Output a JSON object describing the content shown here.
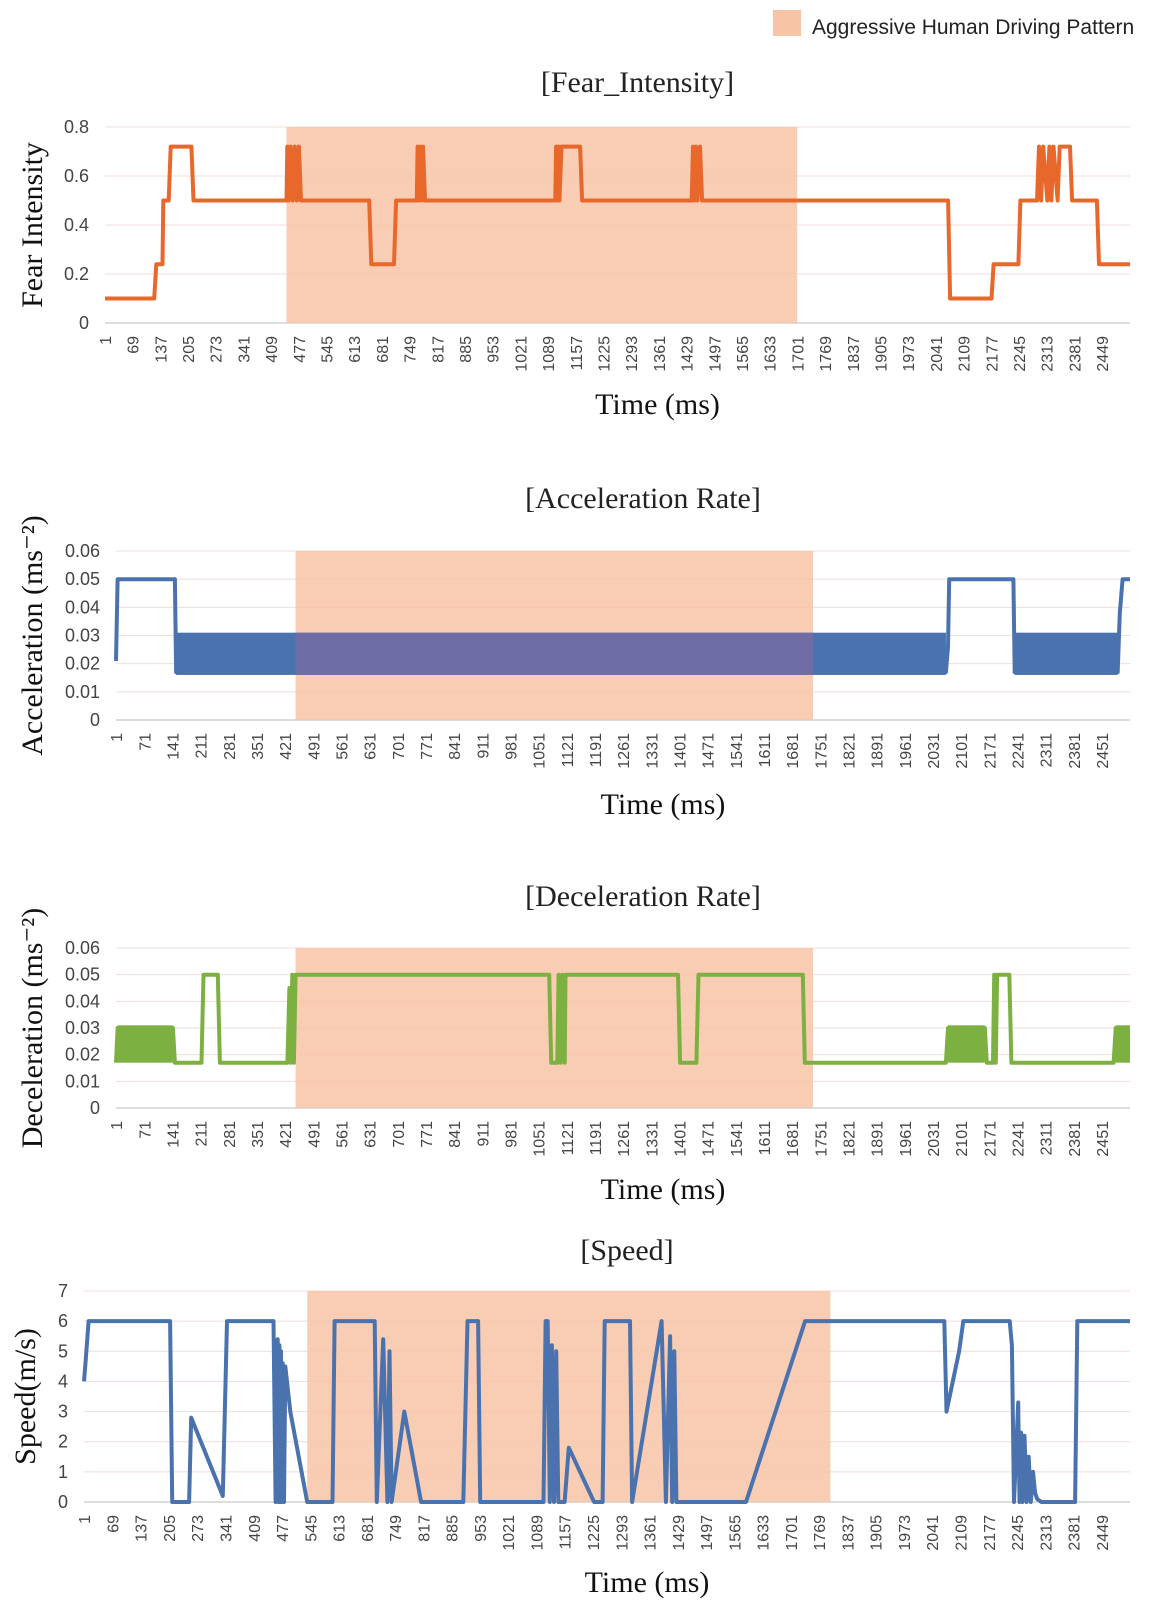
{
  "legend": {
    "label": "Aggressive Human Driving Pattern",
    "color": "#F8C4A6"
  },
  "chart_data": [
    {
      "type": "line",
      "title": "[Fear_Intensity]",
      "xlabel": "Time (ms)",
      "ylabel": "Fear Intensity",
      "color": "#E8672B",
      "ylim": [
        0,
        0.8
      ],
      "yticks": [
        "0",
        "0.2",
        "0.4",
        "0.6",
        "0.8"
      ],
      "xlim": [
        1,
        2480
      ],
      "xticks": [
        "1",
        "69",
        "137",
        "205",
        "273",
        "341",
        "409",
        "477",
        "545",
        "613",
        "681",
        "749",
        "817",
        "885",
        "953",
        "1021",
        "1089",
        "1157",
        "1225",
        "1293",
        "1361",
        "1429",
        "1497",
        "1565",
        "1633",
        "1701",
        "1769",
        "1837",
        "1905",
        "1973",
        "2041",
        "2109",
        "2177",
        "2245",
        "2313",
        "2381",
        "2449"
      ],
      "highlight": [
        440,
        1675
      ],
      "x": [
        1,
        120,
        125,
        140,
        142,
        155,
        160,
        210,
        215,
        235,
        240,
        440,
        442,
        445,
        450,
        455,
        460,
        465,
        470,
        475,
        480,
        640,
        645,
        700,
        705,
        755,
        757,
        760,
        763,
        767,
        770,
        775,
        1090,
        1092,
        1095,
        1098,
        1100,
        1105,
        1110,
        1115,
        1150,
        1155,
        1420,
        1423,
        1427,
        1430,
        1434,
        1440,
        1445,
        2040,
        2045,
        2145,
        2150,
        2210,
        2215,
        2255,
        2260,
        2265,
        2270,
        2280,
        2285,
        2290,
        2295,
        2305,
        2310,
        2335,
        2340,
        2400,
        2405,
        2480
      ],
      "y": [
        0.1,
        0.1,
        0.24,
        0.24,
        0.5,
        0.5,
        0.72,
        0.72,
        0.5,
        0.5,
        0.5,
        0.5,
        0.72,
        0.5,
        0.72,
        0.5,
        0.72,
        0.5,
        0.72,
        0.5,
        0.5,
        0.5,
        0.24,
        0.24,
        0.5,
        0.5,
        0.72,
        0.5,
        0.72,
        0.5,
        0.72,
        0.5,
        0.5,
        0.72,
        0.5,
        0.72,
        0.5,
        0.72,
        0.72,
        0.72,
        0.72,
        0.5,
        0.5,
        0.72,
        0.5,
        0.72,
        0.5,
        0.72,
        0.5,
        0.5,
        0.1,
        0.1,
        0.24,
        0.24,
        0.5,
        0.5,
        0.72,
        0.5,
        0.72,
        0.5,
        0.72,
        0.5,
        0.72,
        0.5,
        0.72,
        0.72,
        0.5,
        0.5,
        0.24,
        0.24
      ]
    },
    {
      "type": "line",
      "title": "[Acceleration Rate]",
      "xlabel": "Time (ms)",
      "ylabel": "Acceleration (ms⁻²)",
      "color": "#4A72AE",
      "ylim": [
        0,
        0.06
      ],
      "yticks": [
        "0",
        "0.01",
        "0.02",
        "0.03",
        "0.04",
        "0.05",
        "0.06"
      ],
      "xlim": [
        1,
        2480
      ],
      "xticks": [
        "1",
        "71",
        "141",
        "211",
        "281",
        "351",
        "421",
        "491",
        "561",
        "631",
        "701",
        "771",
        "841",
        "911",
        "981",
        "1051",
        "1121",
        "1191",
        "1261",
        "1331",
        "1401",
        "1471",
        "1541",
        "1611",
        "1681",
        "1751",
        "1821",
        "1891",
        "1961",
        "2031",
        "2101",
        "2171",
        "2241",
        "2311",
        "2381",
        "2451"
      ],
      "highlight": [
        440,
        1705
      ],
      "x": [
        1,
        5,
        145,
        148,
        2030,
        2035,
        2038,
        2195,
        2198,
        2450,
        2455,
        2462,
        2480
      ],
      "y": [
        0.021,
        0.05,
        0.05,
        0.017,
        0.017,
        0.026,
        0.05,
        0.05,
        0.017,
        0.017,
        0.038,
        0.05,
        0.05
      ],
      "band": {
        "low": 0.016,
        "high": 0.031,
        "segments": [
          [
            148,
            2030
          ],
          [
            2198,
            2450
          ]
        ]
      }
    },
    {
      "type": "line",
      "title": "[Deceleration Rate]",
      "xlabel": "Time (ms)",
      "ylabel": "Deceleration (ms⁻²)",
      "color": "#7CB041",
      "ylim": [
        0,
        0.06
      ],
      "yticks": [
        "0",
        "0.01",
        "0.02",
        "0.03",
        "0.04",
        "0.05",
        "0.06"
      ],
      "xlim": [
        1,
        2480
      ],
      "xticks": [
        "1",
        "71",
        "141",
        "211",
        "281",
        "351",
        "421",
        "491",
        "561",
        "631",
        "701",
        "771",
        "841",
        "911",
        "981",
        "1051",
        "1121",
        "1191",
        "1261",
        "1331",
        "1401",
        "1471",
        "1541",
        "1611",
        "1681",
        "1751",
        "1821",
        "1891",
        "1961",
        "2031",
        "2101",
        "2171",
        "2241",
        "2311",
        "2381",
        "2451"
      ],
      "highlight": [
        440,
        1705
      ],
      "x": [
        1,
        5,
        140,
        145,
        210,
        215,
        250,
        255,
        420,
        425,
        428,
        432,
        436,
        440,
        445,
        1060,
        1065,
        1080,
        1083,
        1088,
        1092,
        1098,
        1100,
        1375,
        1380,
        1420,
        1425,
        1680,
        1685,
        2030,
        2035,
        2125,
        2130,
        2145,
        2148,
        2152,
        2155,
        2160,
        2185,
        2190,
        2440,
        2445,
        2480
      ],
      "y": [
        0.017,
        0.03,
        0.03,
        0.017,
        0.017,
        0.05,
        0.05,
        0.017,
        0.017,
        0.045,
        0.017,
        0.05,
        0.017,
        0.05,
        0.05,
        0.05,
        0.017,
        0.017,
        0.05,
        0.017,
        0.05,
        0.017,
        0.05,
        0.05,
        0.017,
        0.017,
        0.05,
        0.05,
        0.017,
        0.017,
        0.03,
        0.03,
        0.017,
        0.017,
        0.05,
        0.017,
        0.05,
        0.05,
        0.05,
        0.017,
        0.017,
        0.03,
        0.03
      ],
      "band": {
        "low": 0.017,
        "high": 0.031,
        "segments": [
          [
            5,
            140
          ],
          [
            2035,
            2125
          ],
          [
            2445,
            2480
          ]
        ]
      }
    },
    {
      "type": "line",
      "title": "[Speed]",
      "xlabel": "Time (ms)",
      "ylabel": "Speed(m/s)",
      "color": "#4A72AE",
      "ylim": [
        0,
        7
      ],
      "yticks": [
        "0",
        "1",
        "2",
        "3",
        "4",
        "5",
        "6",
        "7"
      ],
      "xlim": [
        1,
        2480
      ],
      "xticks": [
        "1",
        "69",
        "137",
        "205",
        "273",
        "341",
        "409",
        "477",
        "545",
        "613",
        "681",
        "749",
        "817",
        "885",
        "953",
        "1021",
        "1089",
        "1157",
        "1225",
        "1293",
        "1361",
        "1429",
        "1497",
        "1565",
        "1633",
        "1701",
        "1769",
        "1837",
        "1905",
        "1973",
        "2041",
        "2109",
        "2177",
        "2245",
        "2313",
        "2381",
        "2449"
      ],
      "highlight": [
        530,
        1770
      ],
      "x": [
        1,
        5,
        12,
        20,
        205,
        210,
        245,
        250,
        255,
        330,
        340,
        450,
        455,
        460,
        462,
        464,
        466,
        468,
        470,
        472,
        475,
        478,
        490,
        530,
        535,
        555,
        560,
        590,
        595,
        690,
        695,
        710,
        720,
        725,
        730,
        760,
        800,
        830,
        900,
        910,
        935,
        940,
        950,
        1090,
        1095,
        1100,
        1105,
        1110,
        1115,
        1120,
        1125,
        1140,
        1150,
        1210,
        1215,
        1230,
        1235,
        1295,
        1300,
        1370,
        1380,
        1390,
        1395,
        1400,
        1405,
        1420,
        1425,
        1560,
        1570,
        1710,
        1715,
        1720,
        2040,
        2045,
        2075,
        2085,
        2100,
        2105,
        2140,
        2180,
        2195,
        2200,
        2205,
        2215,
        2218,
        2222,
        2225,
        2230,
        2235,
        2240,
        2245,
        2250,
        2255,
        2260,
        2270,
        2310,
        2315,
        2350,
        2355,
        2400,
        2405,
        2480
      ],
      "y": [
        4,
        4.7,
        6,
        6,
        6,
        0,
        0,
        0,
        2.8,
        0.2,
        6,
        6,
        0,
        5.4,
        0,
        5.2,
        0,
        5,
        0,
        4.6,
        0,
        4.5,
        3,
        0,
        0,
        0,
        0,
        0,
        6,
        6,
        0,
        5.4,
        0,
        5,
        0,
        3,
        0,
        0,
        0,
        6,
        6,
        0,
        0,
        0,
        6,
        6,
        0,
        5.2,
        0,
        5,
        0,
        0,
        1.8,
        0,
        0,
        0,
        6,
        6,
        0,
        6,
        0,
        5.5,
        0,
        5,
        0,
        0,
        0,
        0,
        0,
        6,
        6,
        6,
        6,
        3,
        5,
        6,
        6,
        6,
        6,
        6,
        6,
        5.2,
        0,
        3.3,
        0,
        2.3,
        0,
        2.2,
        0,
        1.5,
        0,
        1,
        0.3,
        0.1,
        0,
        0,
        0,
        0,
        6,
        6,
        6,
        6
      ]
    }
  ]
}
